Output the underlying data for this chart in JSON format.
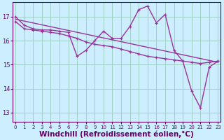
{
  "line1_jagged": {
    "x": [
      0,
      1,
      2,
      3,
      4,
      5,
      6,
      7,
      8,
      9,
      10,
      11,
      12,
      13,
      14,
      15,
      16,
      17,
      18,
      19,
      20,
      21,
      22,
      23
    ],
    "y": [
      17.0,
      16.65,
      16.5,
      16.45,
      16.45,
      16.4,
      16.35,
      15.35,
      15.6,
      16.0,
      16.4,
      16.1,
      16.1,
      16.6,
      17.3,
      17.45,
      16.75,
      17.1,
      15.6,
      15.15,
      13.9,
      13.2,
      14.9,
      15.15
    ],
    "color": "#993399",
    "linewidth": 1.0
  },
  "line2_straight": {
    "x": [
      0,
      23
    ],
    "y": [
      16.9,
      15.1
    ],
    "color": "#993399",
    "linewidth": 1.0
  },
  "line3_mid": {
    "x": [
      0,
      1,
      2,
      3,
      4,
      5,
      6,
      7,
      8,
      9,
      10,
      11,
      12,
      13,
      14,
      15,
      16,
      17,
      18,
      19,
      20,
      21,
      22,
      23
    ],
    "y": [
      16.8,
      16.5,
      16.45,
      16.4,
      16.35,
      16.3,
      16.2,
      16.1,
      15.95,
      15.85,
      15.8,
      15.75,
      15.65,
      15.55,
      15.45,
      15.35,
      15.3,
      15.25,
      15.2,
      15.15,
      15.1,
      15.05,
      15.1,
      15.15
    ],
    "color": "#993399",
    "linewidth": 1.0
  },
  "background_color": "#cceeff",
  "grid_color": "#99ccbb",
  "axis_color": "#660066",
  "tick_color": "#660066",
  "xlabel": "Windchill (Refroidissement éolien,°C)",
  "xlabel_fontsize": 7.5,
  "xticks": [
    0,
    1,
    2,
    3,
    4,
    5,
    6,
    7,
    8,
    9,
    10,
    11,
    12,
    13,
    14,
    15,
    16,
    17,
    18,
    19,
    20,
    21,
    22,
    23
  ],
  "yticks": [
    13,
    14,
    15,
    16,
    17
  ],
  "xlim": [
    -0.3,
    23.3
  ],
  "ylim": [
    12.6,
    17.6
  ],
  "marker": "+",
  "markersize": 3.5,
  "markeredgewidth": 0.9
}
